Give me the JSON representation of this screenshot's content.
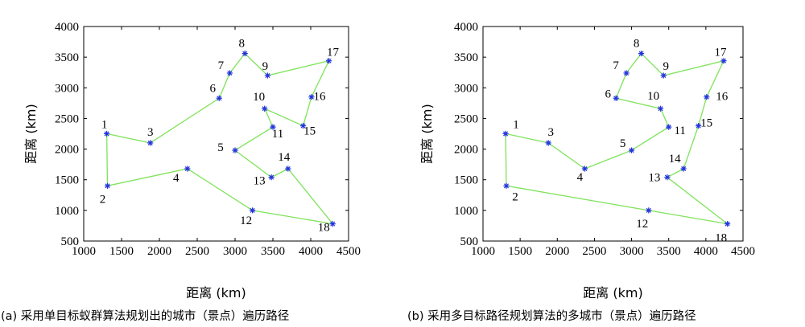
{
  "chart_data": [
    {
      "type": "scatter",
      "caption": "(a) 采用单目标蚁群算法规划出的城市（景点）遍历路径",
      "xlabel": "距离 (km)",
      "ylabel": "距离 (km)",
      "xlim": [
        1000,
        4500
      ],
      "ylim": [
        500,
        4000
      ],
      "xticks": [
        "1000",
        "1500",
        "2000",
        "2500",
        "3000",
        "3500",
        "4000",
        "4500"
      ],
      "yticks": [
        "500",
        "1000",
        "1500",
        "2000",
        "2500",
        "3000",
        "3500",
        "4000"
      ],
      "line_color": "#7fe35a",
      "marker_color": "#2233dd",
      "points": [
        {
          "id": "1",
          "x": 1304,
          "y": 2251
        },
        {
          "id": "2",
          "x": 1314,
          "y": 1400
        },
        {
          "id": "3",
          "x": 1880,
          "y": 2100
        },
        {
          "id": "4",
          "x": 2370,
          "y": 1680
        },
        {
          "id": "5",
          "x": 3000,
          "y": 1980
        },
        {
          "id": "6",
          "x": 2790,
          "y": 2830
        },
        {
          "id": "7",
          "x": 2930,
          "y": 3240
        },
        {
          "id": "8",
          "x": 3130,
          "y": 3560
        },
        {
          "id": "9",
          "x": 3430,
          "y": 3200
        },
        {
          "id": "10",
          "x": 3390,
          "y": 2660
        },
        {
          "id": "11",
          "x": 3500,
          "y": 2360
        },
        {
          "id": "12",
          "x": 3230,
          "y": 1000
        },
        {
          "id": "13",
          "x": 3480,
          "y": 1540
        },
        {
          "id": "14",
          "x": 3700,
          "y": 1680
        },
        {
          "id": "15",
          "x": 3900,
          "y": 2380
        },
        {
          "id": "16",
          "x": 4010,
          "y": 2850
        },
        {
          "id": "17",
          "x": 4240,
          "y": 3440
        },
        {
          "id": "18",
          "x": 4290,
          "y": 780
        }
      ],
      "route": [
        "1",
        "3",
        "6",
        "7",
        "8",
        "9",
        "17",
        "16",
        "15",
        "10",
        "11",
        "5",
        "13",
        "14",
        "18",
        "12",
        "4",
        "2",
        "1"
      ]
    },
    {
      "type": "scatter",
      "caption": "(b) 采用多目标路径规划算法的多城市（景点）遍历路径",
      "xlabel": "距离 (km)",
      "ylabel": "距离 (km)",
      "xlim": [
        1000,
        4500
      ],
      "ylim": [
        500,
        4000
      ],
      "xticks": [
        "1000",
        "1500",
        "2000",
        "2500",
        "3000",
        "3500",
        "4000",
        "4500"
      ],
      "yticks": [
        "500",
        "1000",
        "1500",
        "2000",
        "2500",
        "3000",
        "3500",
        "4000"
      ],
      "line_color": "#7fe35a",
      "marker_color": "#2233dd",
      "points": [
        {
          "id": "1",
          "x": 1304,
          "y": 2251
        },
        {
          "id": "2",
          "x": 1314,
          "y": 1400
        },
        {
          "id": "3",
          "x": 1880,
          "y": 2100
        },
        {
          "id": "4",
          "x": 2370,
          "y": 1680
        },
        {
          "id": "5",
          "x": 3000,
          "y": 1980
        },
        {
          "id": "6",
          "x": 2790,
          "y": 2830
        },
        {
          "id": "7",
          "x": 2930,
          "y": 3240
        },
        {
          "id": "8",
          "x": 3130,
          "y": 3560
        },
        {
          "id": "9",
          "x": 3430,
          "y": 3200
        },
        {
          "id": "10",
          "x": 3390,
          "y": 2660
        },
        {
          "id": "11",
          "x": 3500,
          "y": 2360
        },
        {
          "id": "12",
          "x": 3230,
          "y": 1000
        },
        {
          "id": "13",
          "x": 3480,
          "y": 1540
        },
        {
          "id": "14",
          "x": 3700,
          "y": 1680
        },
        {
          "id": "15",
          "x": 3900,
          "y": 2380
        },
        {
          "id": "16",
          "x": 4010,
          "y": 2850
        },
        {
          "id": "17",
          "x": 4240,
          "y": 3440
        },
        {
          "id": "18",
          "x": 4290,
          "y": 780
        }
      ],
      "route": [
        "1",
        "3",
        "4",
        "5",
        "11",
        "10",
        "6",
        "7",
        "8",
        "9",
        "17",
        "16",
        "15",
        "14",
        "13",
        "18",
        "12",
        "2",
        "1"
      ]
    }
  ]
}
